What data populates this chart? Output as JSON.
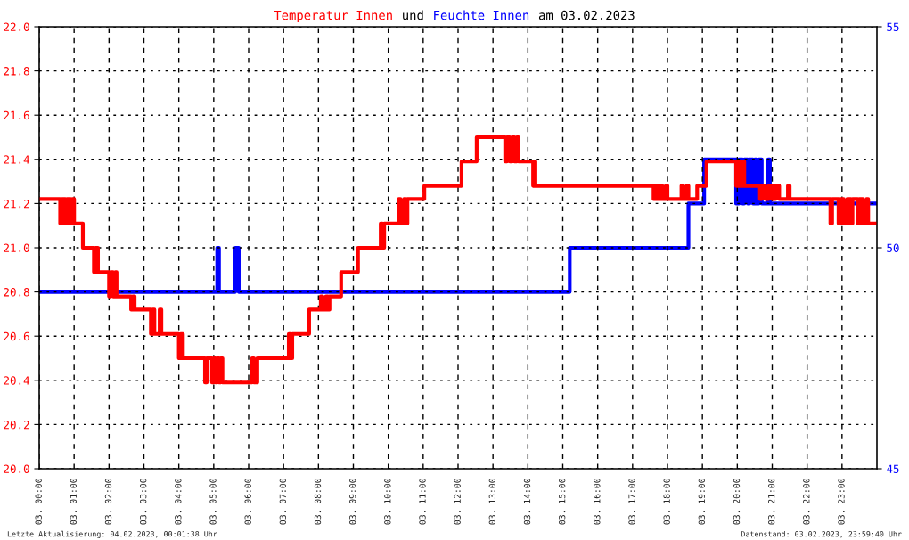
{
  "chart_data": {
    "type": "step",
    "title": "am 03.02.2023",
    "legend": "top",
    "annotations": [
      "und",
      "Letzte Aktualisierung: 04.02.2023, 00:01:38 Uhr",
      "Datenstand: 03.02.2023, 23:59:40 Uhr"
    ],
    "xlim": [
      "2023-02-03T00:00",
      "2023-02-04T00:00"
    ],
    "xticks": [
      {
        "value": "2023-02-03T00:00",
        "label": "03. 00:00"
      },
      {
        "value": "2023-02-03T01:00",
        "label": "03. 01:00"
      },
      {
        "value": "2023-02-03T02:00",
        "label": "03. 02:00"
      },
      {
        "value": "2023-02-03T03:00",
        "label": "03. 03:00"
      },
      {
        "value": "2023-02-03T04:00",
        "label": "03. 04:00"
      },
      {
        "value": "2023-02-03T05:00",
        "label": "03. 05:00"
      },
      {
        "value": "2023-02-03T06:00",
        "label": "03. 06:00"
      },
      {
        "value": "2023-02-03T07:00",
        "label": "03. 07:00"
      },
      {
        "value": "2023-02-03T08:00",
        "label": "03. 08:00"
      },
      {
        "value": "2023-02-03T09:00",
        "label": "03. 09:00"
      },
      {
        "value": "2023-02-03T10:00",
        "label": "03. 10:00"
      },
      {
        "value": "2023-02-03T11:00",
        "label": "03. 11:00"
      },
      {
        "value": "2023-02-03T12:00",
        "label": "03. 12:00"
      },
      {
        "value": "2023-02-03T13:00",
        "label": "03. 13:00"
      },
      {
        "value": "2023-02-03T14:00",
        "label": "03. 14:00"
      },
      {
        "value": "2023-02-03T15:00",
        "label": "03. 15:00"
      },
      {
        "value": "2023-02-03T16:00",
        "label": "03. 16:00"
      },
      {
        "value": "2023-02-03T17:00",
        "label": "03. 17:00"
      },
      {
        "value": "2023-02-03T18:00",
        "label": "03. 18:00"
      },
      {
        "value": "2023-02-03T19:00",
        "label": "03. 19:00"
      },
      {
        "value": "2023-02-03T20:00",
        "label": "03. 20:00"
      },
      {
        "value": "2023-02-03T21:00",
        "label": "03. 21:00"
      },
      {
        "value": "2023-02-03T22:00",
        "label": "03. 22:00"
      },
      {
        "value": "2023-02-03T23:00",
        "label": "03. 23:00"
      }
    ],
    "ylim": [
      20,
      22
    ],
    "yticks": [
      {
        "value": 20,
        "label": "20.0"
      },
      20.2,
      20.4,
      20.6,
      20.8,
      {
        "value": 21,
        "label": "21.0"
      },
      21.2,
      21.4,
      21.6,
      21.8,
      {
        "value": 22,
        "label": "22.0"
      }
    ],
    "y2lim": [
      45,
      55
    ],
    "y2ticks": [
      45,
      50,
      55
    ],
    "grid": true,
    "line_style": "solid",
    "series": [
      {
        "name": "Temperatur Innen",
        "color": "#ff0000",
        "x": [
          "2023-02-03T00:00",
          "2023-02-03T00:36",
          "2023-02-03T00:39",
          "2023-02-03T00:45",
          "2023-02-03T00:48",
          "2023-02-03T00:54",
          "2023-02-03T00:57",
          "2023-02-03T01:00",
          "2023-02-03T01:15",
          "2023-02-03T01:34",
          "2023-02-03T01:37",
          "2023-02-03T01:41",
          "2023-02-03T02:00",
          "2023-02-03T02:03",
          "2023-02-03T02:07",
          "2023-02-03T02:11",
          "2023-02-03T02:13",
          "2023-02-03T02:38",
          "2023-02-03T02:41",
          "2023-02-03T02:44",
          "2023-02-03T03:12",
          "2023-02-03T03:15",
          "2023-02-03T03:18",
          "2023-02-03T03:27",
          "2023-02-03T03:30",
          "2023-02-03T04:00",
          "2023-02-03T04:03",
          "2023-02-03T04:07",
          "2023-02-03T04:45",
          "2023-02-03T04:48",
          "2023-02-03T04:57",
          "2023-02-03T05:00",
          "2023-02-03T05:03",
          "2023-02-03T05:06",
          "2023-02-03T05:09",
          "2023-02-03T05:12",
          "2023-02-03T05:15",
          "2023-02-03T06:06",
          "2023-02-03T06:09",
          "2023-02-03T06:15",
          "2023-02-03T07:09",
          "2023-02-03T07:12",
          "2023-02-03T07:15",
          "2023-02-03T07:44",
          "2023-02-03T08:04",
          "2023-02-03T08:07",
          "2023-02-03T08:13",
          "2023-02-03T08:16",
          "2023-02-03T08:19",
          "2023-02-03T08:39",
          "2023-02-03T09:08",
          "2023-02-03T09:47",
          "2023-02-03T09:50",
          "2023-02-03T09:53",
          "2023-02-03T10:18",
          "2023-02-03T10:21",
          "2023-02-03T10:27",
          "2023-02-03T10:30",
          "2023-02-03T10:33",
          "2023-02-03T11:02",
          "2023-02-03T12:06",
          "2023-02-03T12:32",
          "2023-02-03T13:21",
          "2023-02-03T13:24",
          "2023-02-03T13:29",
          "2023-02-03T13:33",
          "2023-02-03T13:37",
          "2023-02-03T13:41",
          "2023-02-03T13:44",
          "2023-02-03T14:09",
          "2023-02-03T14:11",
          "2023-02-03T14:13",
          "2023-02-03T17:36",
          "2023-02-03T17:39",
          "2023-02-03T17:42",
          "2023-02-03T17:47",
          "2023-02-03T17:51",
          "2023-02-03T17:57",
          "2023-02-03T18:00",
          "2023-02-03T18:24",
          "2023-02-03T18:27",
          "2023-02-03T18:33",
          "2023-02-03T18:36",
          "2023-02-03T18:51",
          "2023-02-03T19:07",
          "2023-02-03T19:58",
          "2023-02-03T20:00",
          "2023-02-03T20:03",
          "2023-02-03T20:09",
          "2023-02-03T20:12",
          "2023-02-03T20:39",
          "2023-02-03T20:42",
          "2023-02-03T20:48",
          "2023-02-03T20:54",
          "2023-02-03T21:00",
          "2023-02-03T21:06",
          "2023-02-03T21:12",
          "2023-02-03T21:27",
          "2023-02-03T21:30",
          "2023-02-03T22:40",
          "2023-02-03T22:43",
          "2023-02-03T22:54",
          "2023-02-03T22:57",
          "2023-02-03T23:03",
          "2023-02-03T23:09",
          "2023-02-03T23:15",
          "2023-02-03T23:18",
          "2023-02-03T23:27",
          "2023-02-03T23:30",
          "2023-02-03T23:36",
          "2023-02-03T23:42",
          "2023-02-03T23:45",
          "2023-02-04T00:00"
        ],
        "values": [
          21.22,
          21.11,
          21.22,
          21.11,
          21.22,
          21.11,
          21.22,
          21.11,
          21.0,
          20.89,
          21.0,
          20.89,
          20.78,
          20.89,
          20.78,
          20.89,
          20.78,
          20.72,
          20.78,
          20.72,
          20.61,
          20.72,
          20.61,
          20.72,
          20.61,
          20.5,
          20.61,
          20.5,
          20.39,
          20.5,
          20.39,
          20.5,
          20.39,
          20.5,
          20.39,
          20.5,
          20.39,
          20.5,
          20.39,
          20.5,
          20.61,
          20.5,
          20.61,
          20.72,
          20.78,
          20.72,
          20.78,
          20.72,
          20.78,
          20.89,
          21.0,
          21.11,
          21.0,
          21.11,
          21.22,
          21.11,
          21.22,
          21.11,
          21.22,
          21.28,
          21.39,
          21.5,
          21.39,
          21.5,
          21.39,
          21.5,
          21.39,
          21.5,
          21.39,
          21.28,
          21.39,
          21.28,
          21.22,
          21.28,
          21.22,
          21.28,
          21.22,
          21.28,
          21.22,
          21.28,
          21.22,
          21.28,
          21.22,
          21.28,
          21.39,
          21.28,
          21.39,
          21.28,
          21.39,
          21.28,
          21.22,
          21.28,
          21.22,
          21.28,
          21.22,
          21.28,
          21.22,
          21.28,
          21.22,
          21.11,
          21.22,
          21.11,
          21.22,
          21.11,
          21.22,
          21.11,
          21.22,
          21.11,
          21.22,
          21.11,
          21.22,
          21.11,
          21.11
        ]
      },
      {
        "name": "Feuchte Innen",
        "color": "#0000ff",
        "axis": "y2",
        "x": [
          "2023-02-03T00:00",
          "2023-02-03T05:06",
          "2023-02-03T05:09",
          "2023-02-03T05:37",
          "2023-02-03T05:43",
          "2023-02-03T15:12",
          "2023-02-03T18:36",
          "2023-02-03T19:03",
          "2023-02-03T19:58",
          "2023-02-03T20:03",
          "2023-02-03T20:09",
          "2023-02-03T20:12",
          "2023-02-03T20:18",
          "2023-02-03T20:21",
          "2023-02-03T20:27",
          "2023-02-03T20:30",
          "2023-02-03T20:33",
          "2023-02-03T20:37",
          "2023-02-03T20:42",
          "2023-02-03T20:53",
          "2023-02-03T20:56",
          "2023-02-04T00:00"
        ],
        "values": [
          49,
          50,
          49,
          50,
          49,
          50,
          51,
          52,
          51,
          52,
          51,
          52,
          51,
          52,
          51,
          52,
          51,
          52,
          51,
          52,
          51,
          51
        ]
      }
    ]
  }
}
